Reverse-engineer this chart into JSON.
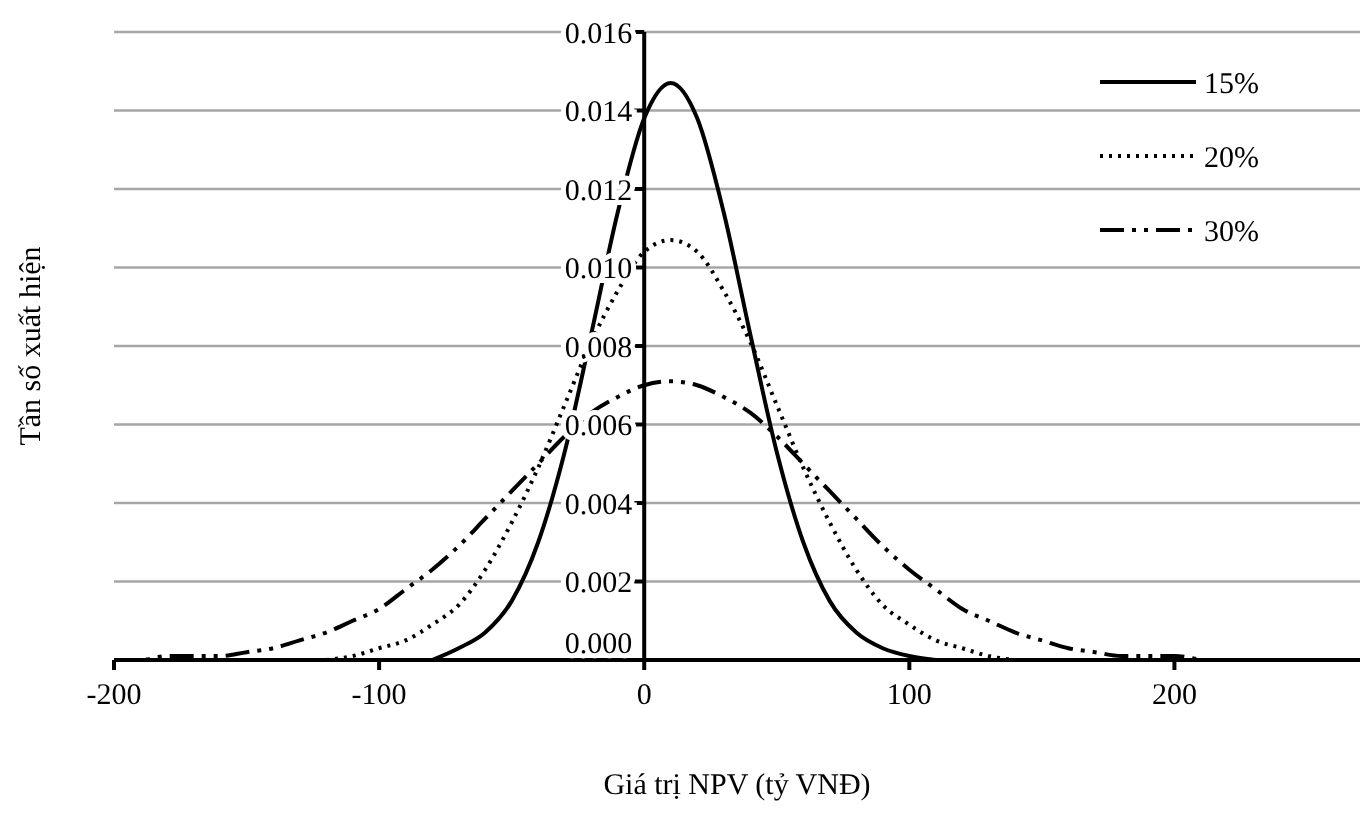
{
  "chart_data": {
    "type": "line",
    "xlabel": "Giá trị NPV (tỷ VNĐ)",
    "ylabel": "Tần số xuất hiện",
    "x": [
      -200,
      -190,
      -180,
      -170,
      -160,
      -150,
      -140,
      -130,
      -120,
      -110,
      -100,
      -90,
      -80,
      -70,
      -60,
      -50,
      -40,
      -30,
      -20,
      -10,
      0,
      10,
      20,
      30,
      40,
      50,
      60,
      70,
      80,
      90,
      100,
      110,
      120,
      130,
      140,
      150,
      160,
      170,
      180,
      190,
      200,
      210
    ],
    "series": [
      {
        "name": "15%",
        "color": "#000000",
        "line_style": "solid",
        "values": [
          null,
          null,
          null,
          null,
          null,
          null,
          null,
          null,
          null,
          null,
          null,
          null,
          0,
          0.0003,
          0.0007,
          0.0015,
          0.003,
          0.0053,
          0.0083,
          0.0114,
          0.0138,
          0.0147,
          0.0138,
          0.0114,
          0.0083,
          0.0053,
          0.003,
          0.0015,
          0.0007,
          0.0003,
          0.0001,
          0,
          null,
          null,
          null,
          null,
          null,
          null,
          null,
          null,
          null,
          null
        ]
      },
      {
        "name": "20%",
        "color": "#000000",
        "line_style": "dotted",
        "values": [
          null,
          null,
          null,
          null,
          null,
          null,
          null,
          null,
          0,
          0.0001,
          0.0003,
          0.0005,
          0.0009,
          0.0014,
          0.0023,
          0.0035,
          0.0049,
          0.0065,
          0.0081,
          0.0094,
          0.0104,
          0.0107,
          0.0104,
          0.0094,
          0.0081,
          0.0065,
          0.0049,
          0.0035,
          0.0023,
          0.0014,
          0.0009,
          0.0005,
          0.0003,
          0.0001,
          0,
          null,
          null,
          null,
          null,
          null,
          null,
          null
        ]
      },
      {
        "name": "30%",
        "color": "#000000",
        "line_style": "dashdot",
        "values": [
          0,
          0,
          0.0001,
          0.0001,
          0.0001,
          0.0002,
          0.0003,
          0.0005,
          0.0007,
          0.001,
          0.0013,
          0.0018,
          0.0023,
          0.0029,
          0.0036,
          0.0043,
          0.005,
          0.0057,
          0.0063,
          0.0067,
          0.007,
          0.0071,
          0.007,
          0.0067,
          0.0063,
          0.0057,
          0.005,
          0.0043,
          0.0036,
          0.0029,
          0.0023,
          0.0018,
          0.0013,
          0.001,
          0.0007,
          0.0005,
          0.0003,
          0.0002,
          0.0001,
          0.0001,
          0.0001,
          0
        ]
      }
    ],
    "xlim": [
      -200,
      270
    ],
    "xticks": [
      -200,
      -100,
      0,
      100,
      200
    ],
    "ylim": [
      0,
      0.016
    ],
    "yticks": [
      {
        "value": 0,
        "label": "0.000"
      },
      {
        "value": 0.002,
        "label": "0.002"
      },
      {
        "value": 0.004,
        "label": "0.004"
      },
      {
        "value": 0.006,
        "label": "0.006"
      },
      {
        "value": 0.008,
        "label": "0.008"
      },
      {
        "value": 0.01,
        "label": "0.010"
      },
      {
        "value": 0.012,
        "label": "0.012"
      },
      {
        "value": 0.014,
        "label": "0.014"
      },
      {
        "value": 0.016,
        "label": "0.016"
      }
    ],
    "grid": "y",
    "legend": "top right"
  }
}
